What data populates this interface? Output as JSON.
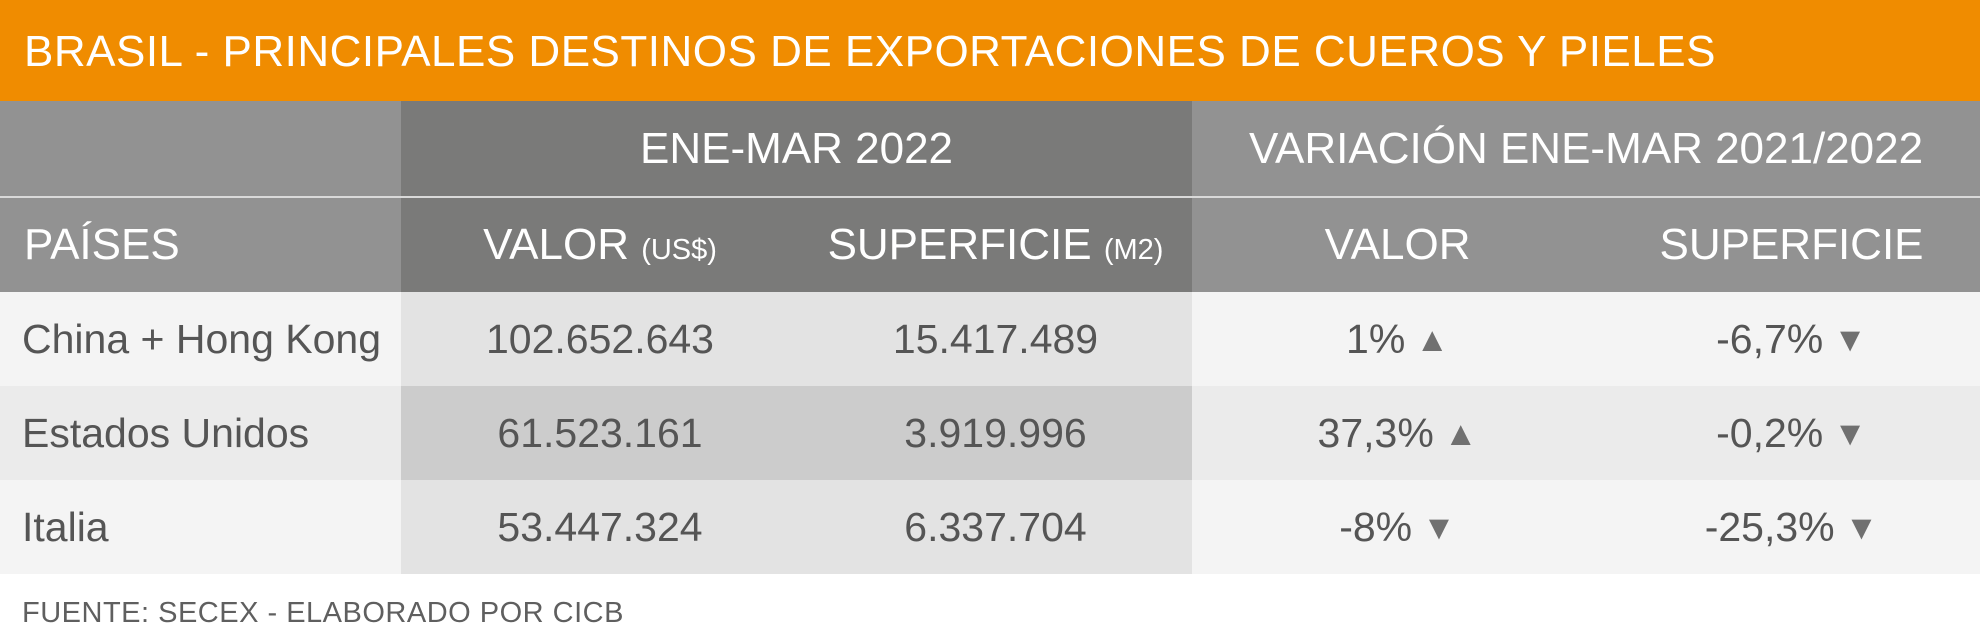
{
  "title": "BRASIL - PRINCIPALES DESTINOS DE EXPORTACIONES DE CUEROS Y PIELES",
  "group_headers": {
    "period": "ENE-MAR 2022",
    "variation": "VARIACIÓN ENE-MAR 2021/2022"
  },
  "column_headers": {
    "country": "PAÍSES",
    "value": "VALOR",
    "value_unit": "(US$)",
    "area": "SUPERFICIE",
    "area_unit": "(M2)",
    "var_value": "VALOR",
    "var_area": "SUPERFICIE"
  },
  "rows": [
    {
      "country": "China + Hong Kong",
      "value": "102.652.643",
      "area": "15.417.489",
      "var_value": "1%",
      "var_value_arrow": "▲",
      "var_area": "-6,7%",
      "var_area_arrow": "▼"
    },
    {
      "country": "Estados Unidos",
      "value": "61.523.161",
      "area": "3.919.996",
      "var_value": "37,3%",
      "var_value_arrow": "▲",
      "var_area": "-0,2%",
      "var_area_arrow": "▼"
    },
    {
      "country": "Italia",
      "value": "53.447.324",
      "area": "6.337.704",
      "var_value": "-8%",
      "var_value_arrow": "▼",
      "var_area": "-25,3%",
      "var_area_arrow": "▼"
    }
  ],
  "source": "FUENTE: SECEX - ELABORADO POR CICB",
  "colors": {
    "title_bar": "#f08c00",
    "header_light": "#929292",
    "header_dark": "#7a7a79",
    "text": "#555555"
  },
  "chart_data": {
    "type": "table",
    "title": "BRASIL - PRINCIPALES DESTINOS DE EXPORTACIONES DE CUEROS Y PIELES",
    "columns": [
      "PAÍSES",
      "VALOR (US$)",
      "SUPERFICIE (M2)",
      "VALOR",
      "SUPERFICIE"
    ],
    "rows": [
      [
        "China + Hong Kong",
        102652643,
        15417489,
        "1%",
        "-6,7%"
      ],
      [
        "Estados Unidos",
        61523161,
        3919996,
        "37,3%",
        "-0,2%"
      ],
      [
        "Italia",
        53447324,
        6337704,
        "-8%",
        "-25,3%"
      ]
    ]
  }
}
